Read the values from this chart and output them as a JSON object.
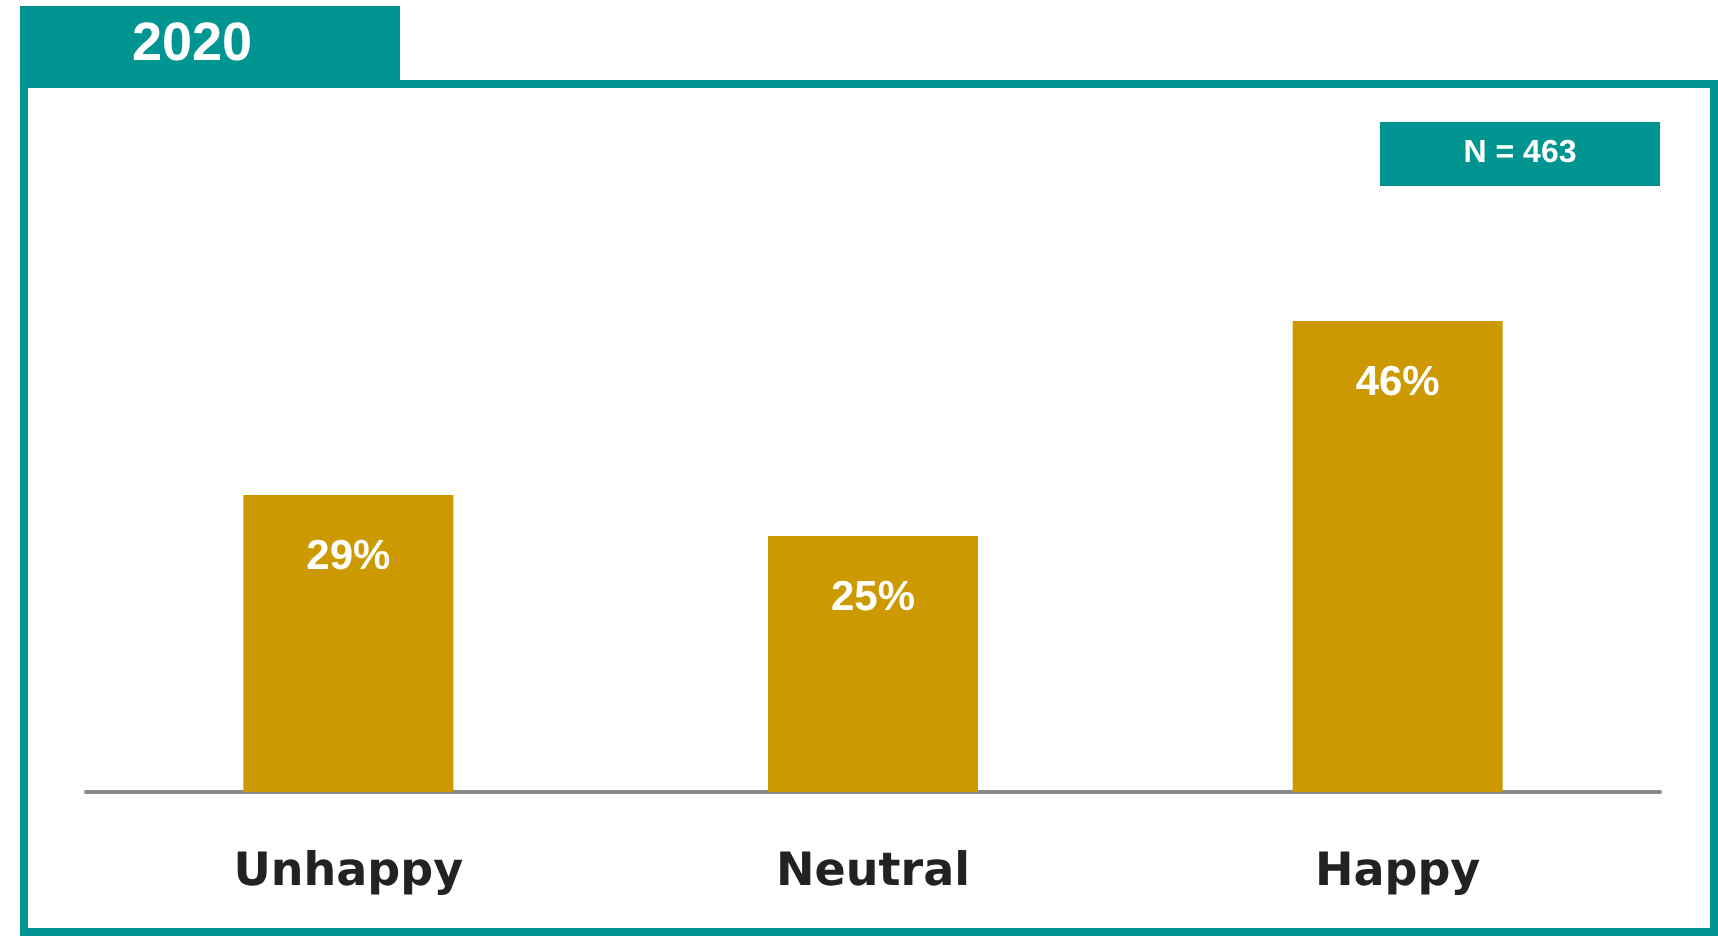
{
  "chart_data": {
    "type": "bar",
    "title": "2020",
    "annotations": [
      "N = 463"
    ],
    "categories": [
      "Unhappy",
      "Neutral",
      "Happy"
    ],
    "values": [
      29,
      25,
      46
    ],
    "value_labels": [
      "29%",
      "25%",
      "46%"
    ],
    "color": "#cc9900"
  }
}
